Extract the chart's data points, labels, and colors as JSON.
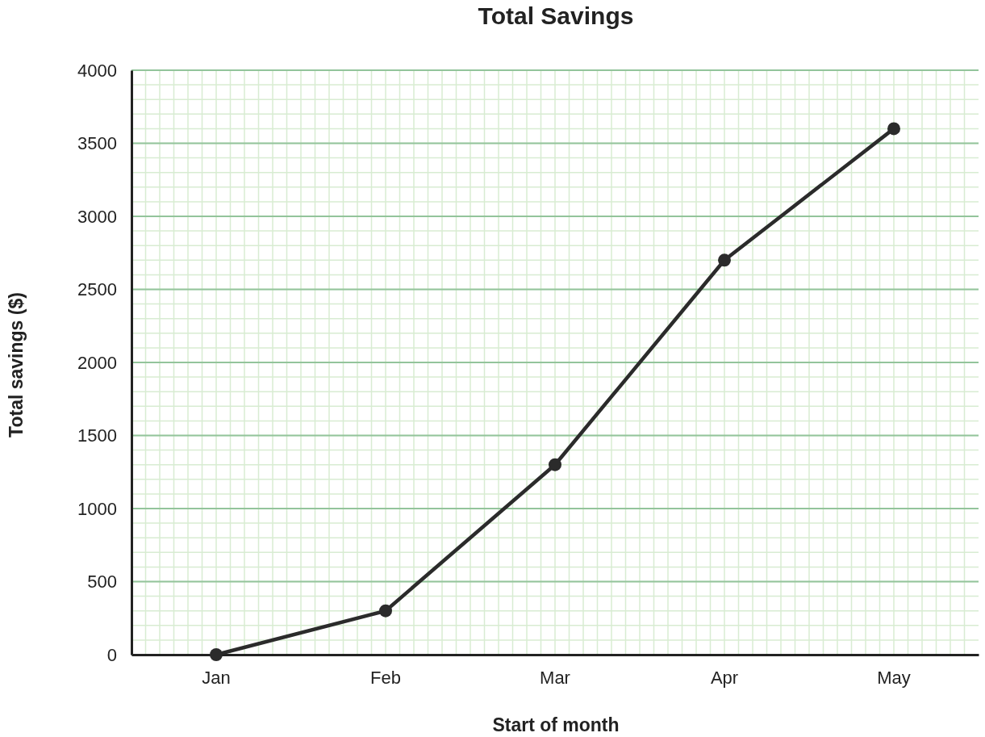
{
  "chart_data": {
    "type": "line",
    "title": "Total Savings",
    "xlabel": "Start of month",
    "ylabel": "Total savings ($)",
    "categories": [
      "Jan",
      "Feb",
      "Mar",
      "Apr",
      "May"
    ],
    "series": [
      {
        "color": "#2b2b2b",
        "values": [
          0,
          300,
          1300,
          2700,
          3600
        ]
      }
    ],
    "ylim": [
      0,
      4000
    ],
    "yticks": [
      0,
      500,
      1000,
      1500,
      2000,
      2500,
      3000,
      3500,
      4000
    ],
    "grid": true,
    "marker": "circle",
    "line_style": "solid"
  }
}
